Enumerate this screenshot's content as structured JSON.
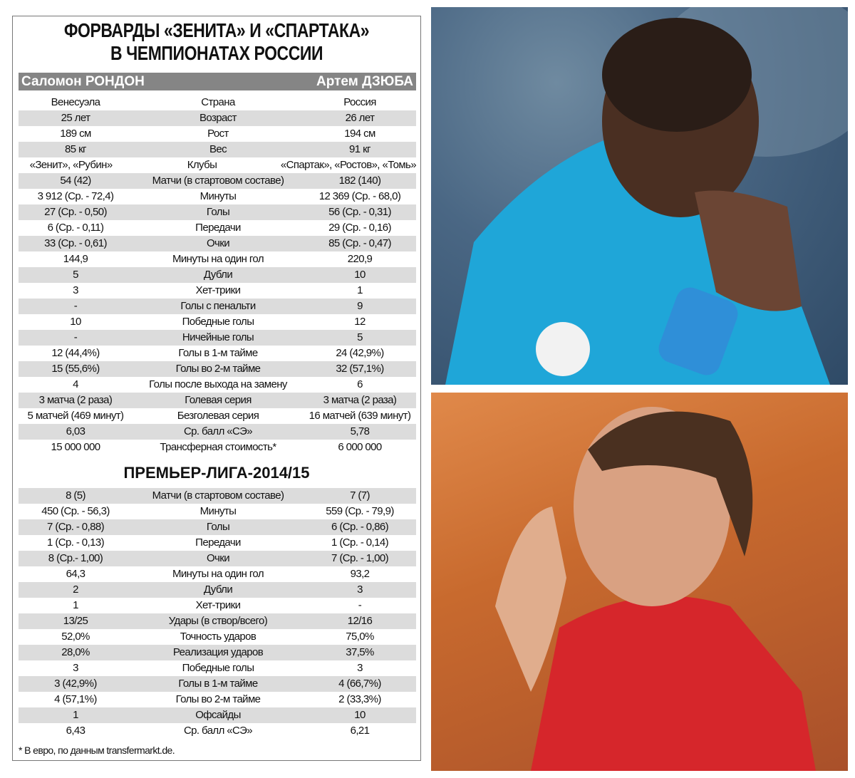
{
  "title": {
    "line1": "ФОРВАРДЫ «ЗЕНИТА» И «СПАРТАКА»",
    "line2": "В ЧЕМПИОНАТАХ РОССИИ"
  },
  "players": {
    "left": "Саломон РОНДОН",
    "right": "Артем ДЗЮБА"
  },
  "career_rows": [
    [
      "Венесуэла",
      "Страна",
      "Россия"
    ],
    [
      "25 лет",
      "Возраст",
      "26 лет"
    ],
    [
      "189 см",
      "Рост",
      "194 см"
    ],
    [
      "85 кг",
      "Вес",
      "91 кг"
    ],
    [
      "«Зенит», «Рубин»",
      "Клубы",
      "«Спартак», «Ростов», «Томь»"
    ],
    [
      "54 (42)",
      "Матчи (в стартовом составе)",
      "182 (140)"
    ],
    [
      "3 912 (Ср. - 72,4)",
      "Минуты",
      "12 369 (Ср. - 68,0)"
    ],
    [
      "27 (Ср. - 0,50)",
      "Голы",
      "56 (Ср. - 0,31)"
    ],
    [
      "6 (Ср. - 0,11)",
      "Передачи",
      "29 (Ср. - 0,16)"
    ],
    [
      "33 (Ср. - 0,61)",
      "Очки",
      "85 (Ср. - 0,47)"
    ],
    [
      "144,9",
      "Минуты на один гол",
      "220,9"
    ],
    [
      "5",
      "Дубли",
      "10"
    ],
    [
      "3",
      "Хет-трики",
      "1"
    ],
    [
      "-",
      "Голы с пенальти",
      "9"
    ],
    [
      "10",
      "Победные голы",
      "12"
    ],
    [
      "-",
      "Ничейные голы",
      "5"
    ],
    [
      "12 (44,4%)",
      "Голы в 1-м тайме",
      "24 (42,9%)"
    ],
    [
      "15 (55,6%)",
      "Голы во 2-м тайме",
      "32 (57,1%)"
    ],
    [
      "4",
      "Голы после выхода на замену",
      "6"
    ],
    [
      "3 матча (2 раза)",
      "Голевая серия",
      "3 матча (2 раза)"
    ],
    [
      "5 матчей (469 минут)",
      "Безголевая серия",
      "16 матчей (639 минут)"
    ],
    [
      "6,03",
      "Ср. балл «СЭ»",
      "5,78"
    ],
    [
      "15 000 000",
      "Трансферная стоимость*",
      "6 000 000"
    ]
  ],
  "season_title": "ПРЕМЬЕР-ЛИГА-2014/15",
  "season_rows": [
    [
      "8 (5)",
      "Матчи (в стартовом составе)",
      "7 (7)"
    ],
    [
      "450 (Ср. - 56,3)",
      "Минуты",
      "559 (Ср. - 79,9)"
    ],
    [
      "7 (Ср. - 0,88)",
      "Голы",
      "6 (Ср. - 0,86)"
    ],
    [
      "1 (Ср. - 0,13)",
      "Передачи",
      "1 (Ср. - 0,14)"
    ],
    [
      "8 (Ср.- 1,00)",
      "Очки",
      "7 (Ср. - 1,00)"
    ],
    [
      "64,3",
      "Минуты на один гол",
      "93,2"
    ],
    [
      "2",
      "Дубли",
      "3"
    ],
    [
      "1",
      "Хет-трики",
      "-"
    ],
    [
      "13/25",
      "Удары (в створ/всего)",
      "12/16"
    ],
    [
      "52,0%",
      "Точность ударов",
      "75,0%"
    ],
    [
      "28,0%",
      "Реализация ударов",
      "37,5%"
    ],
    [
      "3",
      "Победные голы",
      "3"
    ],
    [
      "3 (42,9%)",
      "Голы в 1-м тайме",
      "4 (66,7%)"
    ],
    [
      "4 (57,1%)",
      "Голы во 2-м тайме",
      "2 (33,3%)"
    ],
    [
      "1",
      "Офсайды",
      "10"
    ],
    [
      "6,43",
      "Ср. балл «СЭ»",
      "6,21"
    ]
  ],
  "footnote": "* В евро, по данным transfermarkt.de.",
  "colors": {
    "header_bar": "#858585",
    "row_shade": "#dcdcdc",
    "zenit_shirt": "#1fa6d8",
    "spartak_shirt": "#d6262b"
  }
}
